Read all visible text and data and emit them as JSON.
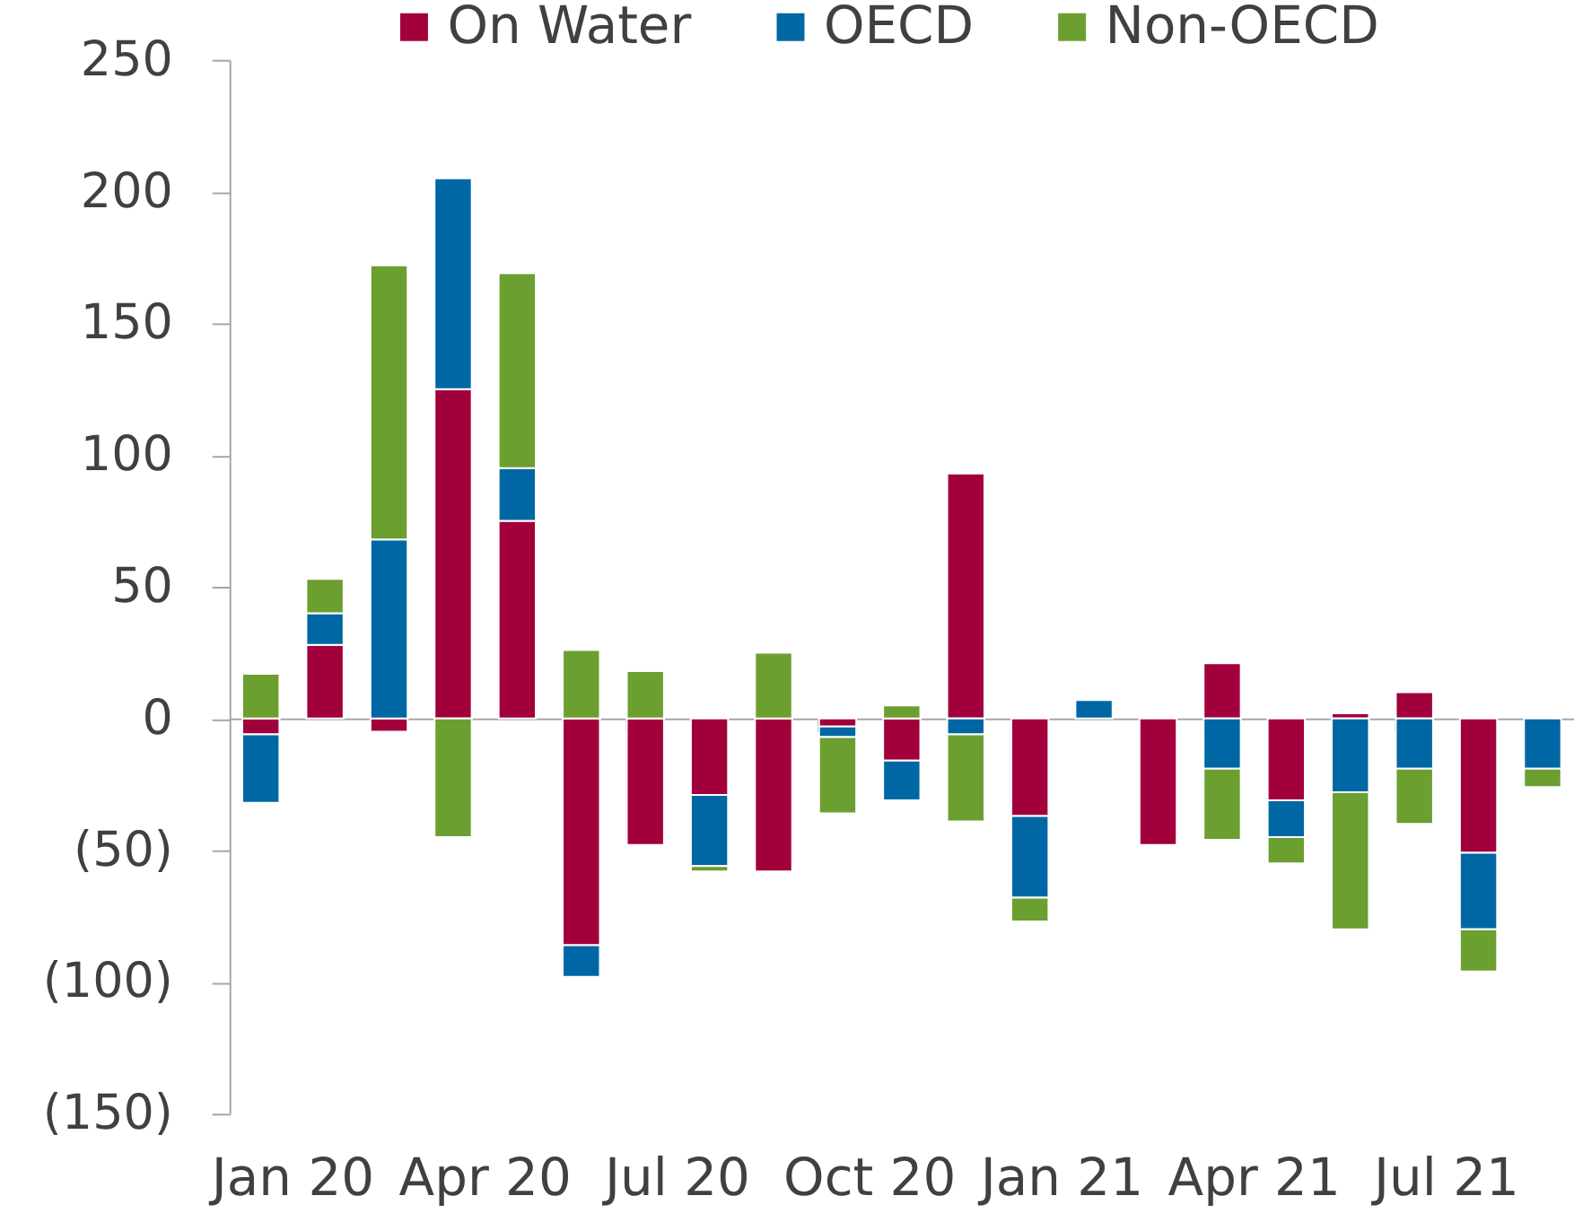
{
  "chart_data": {
    "type": "bar",
    "stacked": true,
    "legend": "top",
    "categories": [
      "Jan 20",
      null,
      null,
      "Apr 20",
      null,
      null,
      "Jul 20",
      null,
      null,
      "Oct 20",
      null,
      null,
      "Jan 21",
      null,
      null,
      "Apr 21",
      null,
      null,
      "Jul 21",
      null,
      null
    ],
    "series": [
      {
        "name": "On Water",
        "color": "#a2003c",
        "values": [
          -6,
          28,
          -5,
          125,
          75,
          -86,
          -48,
          -29,
          -58,
          -3,
          -16,
          93,
          -37,
          null,
          -48,
          21,
          -31,
          2,
          10,
          -51,
          null
        ]
      },
      {
        "name": "OECD",
        "color": "#0067a4",
        "values": [
          -26,
          12,
          68,
          80,
          20,
          -12,
          null,
          -27,
          null,
          -4,
          -15,
          -6,
          -31,
          7,
          null,
          -19,
          -14,
          -28,
          -19,
          -29,
          -19
        ]
      },
      {
        "name": "Non-OECD",
        "color": "#6b9f30",
        "values": [
          17,
          13,
          104,
          -45,
          74,
          26,
          18,
          -2,
          25,
          -29,
          5,
          -33,
          -9,
          null,
          null,
          -27,
          -10,
          -52,
          -21,
          -16,
          -7
        ]
      }
    ],
    "ylim": [
      -150,
      250
    ],
    "yticks": [
      {
        "value": -150,
        "label": "(150)"
      },
      {
        "value": -100,
        "label": "(100)"
      },
      {
        "value": -50,
        "label": "(50)"
      },
      0,
      50,
      100,
      150,
      200,
      250
    ]
  }
}
